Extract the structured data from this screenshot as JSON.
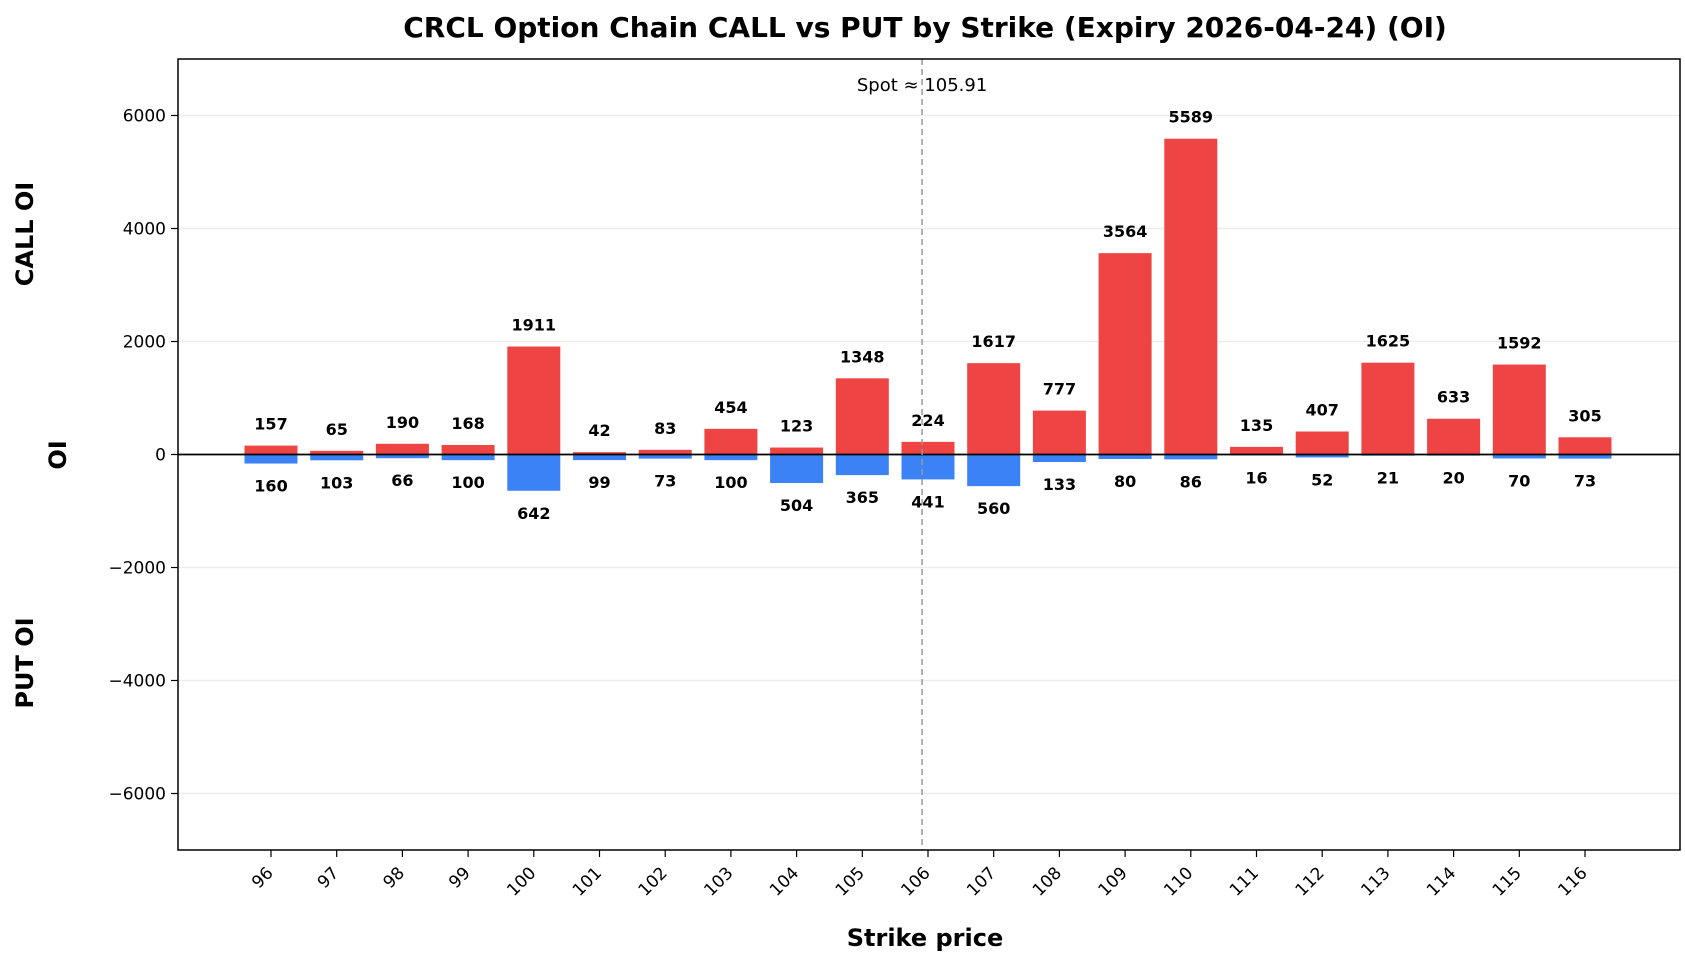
{
  "colors": {
    "call": "#ef4444",
    "put": "#3b82f6",
    "grid": "#ececec",
    "spot_line": "#999999",
    "zero_line": "#000000"
  },
  "chart_data": {
    "type": "bar",
    "title": "CRCL Option Chain CALL vs PUT by Strike (Expiry 2026-04-24) (OI)",
    "xlabel": "Strike price",
    "ylabel": "OI",
    "side_labels": {
      "top": "CALL OI",
      "bottom": "PUT OI"
    },
    "ylim": [
      -7000,
      7000
    ],
    "yticks": [
      -6000,
      -4000,
      -2000,
      0,
      2000,
      4000,
      6000
    ],
    "ytick_labels": [
      "−6000",
      "−4000",
      "−2000",
      "0",
      "2000",
      "4000",
      "6000"
    ],
    "grid": true,
    "legend": "none",
    "categories": [
      "96",
      "97",
      "98",
      "99",
      "100",
      "101",
      "102",
      "103",
      "104",
      "105",
      "106",
      "107",
      "108",
      "109",
      "110",
      "111",
      "112",
      "113",
      "114",
      "115",
      "116"
    ],
    "series": [
      {
        "values": [
          157,
          65,
          190,
          168,
          1911,
          42,
          83,
          454,
          123,
          1348,
          224,
          1617,
          777,
          3564,
          5589,
          135,
          407,
          1625,
          633,
          1592,
          305
        ]
      },
      {
        "values": [
          160,
          103,
          66,
          100,
          642,
          99,
          73,
          100,
          504,
          365,
          441,
          560,
          133,
          80,
          86,
          16,
          52,
          21,
          20,
          70,
          73
        ]
      }
    ],
    "spot": {
      "value": 105.91,
      "label": "Spot ≈ 105.91"
    }
  }
}
